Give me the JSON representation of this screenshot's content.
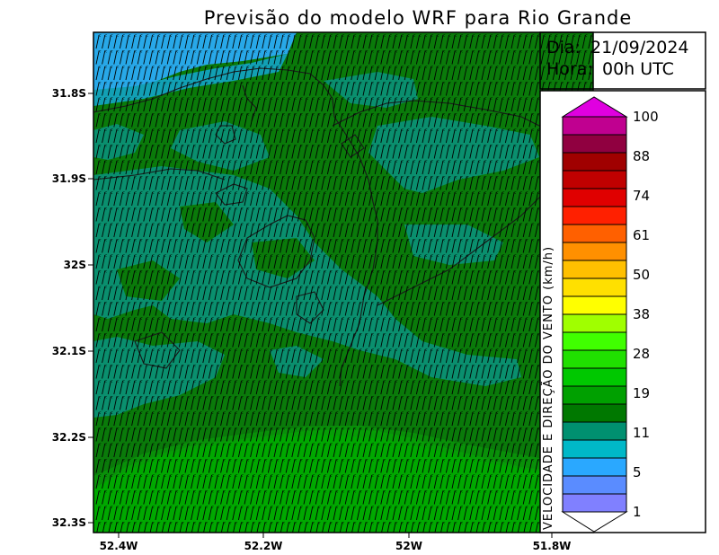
{
  "title": "Previsão do modelo WRF para Rio Grande",
  "info": {
    "day_label": "Dia:",
    "day_value": "21/09/2024",
    "hour_label": "Hora:",
    "hour_value": "00h UTC"
  },
  "map": {
    "lon_ticks": [
      "52.4W",
      "52.2W",
      "52W",
      "51.8W"
    ],
    "lat_ticks": [
      "31.8S",
      "31.9S",
      "32S",
      "32.1S",
      "32.2S",
      "32.3S"
    ],
    "wind_direction": "from south-southwest (arrows pointing north-northeast)"
  },
  "colorbar": {
    "title": "VELOCIDADE E DIREÇÃO DO VENTO (km/h)",
    "labels": [
      "1",
      "5",
      "11",
      "19",
      "28",
      "38",
      "50",
      "61",
      "74",
      "88",
      "100"
    ],
    "colors": [
      "#8080ff",
      "#5a8cff",
      "#2aa8ff",
      "#00b8c8",
      "#009070",
      "#007800",
      "#00a000",
      "#00c800",
      "#20e000",
      "#40ff00",
      "#a0ff00",
      "#ffff00",
      "#ffe000",
      "#ffc000",
      "#ff9000",
      "#ff6000",
      "#ff2000",
      "#e00000",
      "#c00000",
      "#a00000",
      "#900040",
      "#c00090"
    ],
    "cap_top_color": "#e000e0",
    "cap_bottom_color": "#ffffff"
  },
  "colors": {
    "deep_green": "#0a7a0a",
    "teal": "#0a8f6e",
    "light_green": "#00a800",
    "blue": "#28a8e8"
  }
}
